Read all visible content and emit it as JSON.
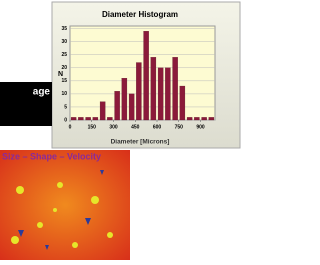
{
  "chart_data": {
    "type": "histogram",
    "title": "Diameter Histogram",
    "x_label": "Diameter [Microns]",
    "y_label": "N",
    "bins": [
      0,
      50,
      100,
      150,
      200,
      250,
      300,
      350,
      400,
      450,
      500,
      550,
      600,
      650,
      700,
      750,
      800,
      850,
      900,
      950,
      1000
    ],
    "values": [
      1,
      1,
      1,
      1,
      7,
      1,
      11,
      16,
      10,
      22,
      34,
      24,
      20,
      20,
      24,
      13,
      1,
      1,
      1,
      1
    ],
    "color": "#8b1a3a",
    "xlim": [
      0,
      1000
    ],
    "xticks": [
      0,
      150,
      300,
      450,
      600,
      750,
      900
    ],
    "ylim": [
      0,
      36
    ],
    "yticks": [
      0,
      5,
      10,
      15,
      20,
      25,
      30,
      35
    ],
    "grid": true
  },
  "side_label": "age",
  "caption": "Size – Shape – Velocity"
}
